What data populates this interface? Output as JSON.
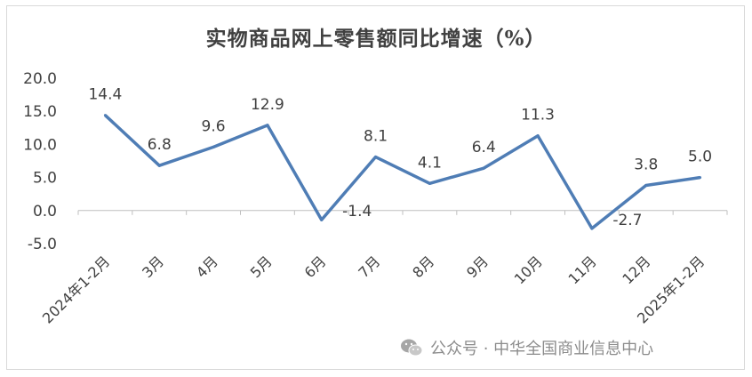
{
  "chart_data": {
    "type": "line",
    "title": "实物商品网上零售额同比增速（%）",
    "categories": [
      "2024年1-2月",
      "3月",
      "4月",
      "5月",
      "6月",
      "7月",
      "8月",
      "9月",
      "10月",
      "11月",
      "12月",
      "2025年1-2月"
    ],
    "values": [
      14.4,
      6.8,
      9.6,
      12.9,
      -1.4,
      8.1,
      4.1,
      6.4,
      11.3,
      -2.7,
      3.8,
      5.0
    ],
    "data_labels": [
      "14.4",
      "6.8",
      "9.6",
      "12.9",
      "-1.4",
      "8.1",
      "4.1",
      "6.4",
      "11.3",
      "-2.7",
      "3.8",
      "5.0"
    ],
    "yticks": [
      "20.0",
      "15.0",
      "10.0",
      "5.0",
      "0.0",
      "-5.0"
    ],
    "ylim": [
      -5,
      20
    ],
    "xlabel": "",
    "ylabel": "",
    "grid": false,
    "legend": "none",
    "line_color": "#4f7db5"
  },
  "watermark": {
    "text": "公众号 · 中华全国商业信息中心",
    "icon": "wechat-icon"
  }
}
